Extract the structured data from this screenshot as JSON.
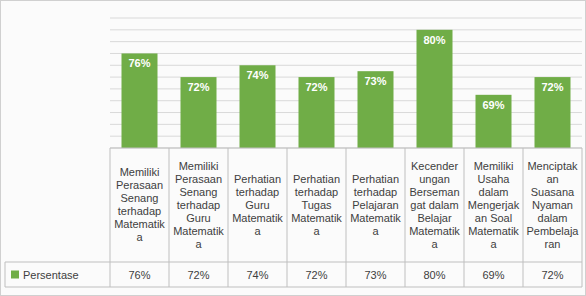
{
  "chart_data": {
    "type": "bar",
    "categories": [
      "Memiliki Perasaan Senang terhadap Matematika",
      "Memiliki Perasaan Senang terhadap Guru Matematika",
      "Perhatian terhadap Guru Matematika",
      "Perhatian terhadap Tugas Matematika",
      "Perhatian terhadap Pelajaran Matematika",
      "Kecenderungan Bersemangat dalam Belajar Matematika",
      "Memiliki Usaha dalam Mengerjakan Soal Matematika",
      "Menciptakan Suasana Nyaman dalam Pembelajaran"
    ],
    "series": [
      {
        "name": "Persentase",
        "color": "#70ad47",
        "values": [
          76,
          72,
          74,
          72,
          73,
          80,
          69,
          72
        ],
        "value_labels": [
          "76%",
          "72%",
          "74%",
          "72%",
          "73%",
          "80%",
          "69%",
          "72%"
        ]
      }
    ],
    "ylim": [
      60,
      82
    ],
    "yticks": [
      60,
      62,
      64,
      66,
      68,
      70,
      72,
      74,
      76,
      78,
      80,
      82
    ],
    "grid": true,
    "data_labels": true,
    "tick_labels": false
  }
}
